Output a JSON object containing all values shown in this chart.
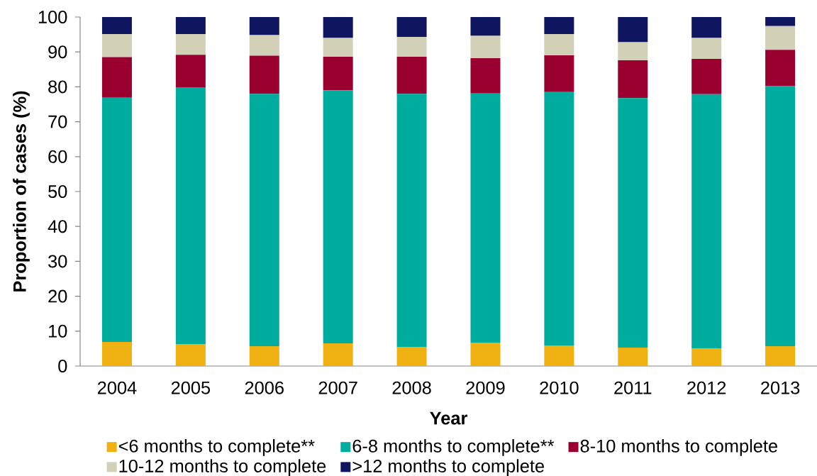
{
  "chart_data": {
    "type": "bar",
    "stacked": true,
    "xlabel": "Year",
    "ylabel": "Proportion of cases (%)",
    "categories": [
      "2004",
      "2005",
      "2006",
      "2007",
      "2008",
      "2009",
      "2010",
      "2011",
      "2012",
      "2013"
    ],
    "ylim": [
      0,
      100
    ],
    "yticks": [
      0,
      10,
      20,
      30,
      40,
      50,
      60,
      70,
      80,
      90,
      100
    ],
    "legend": "bottom",
    "series": [
      {
        "name": "<6 months to complete**",
        "color": "#eeb111",
        "values": [
          6.9,
          6.3,
          5.7,
          6.5,
          5.5,
          6.7,
          5.9,
          5.3,
          5.0,
          5.7
        ]
      },
      {
        "name": "6-8 months to complete**",
        "color": "#00ac9d",
        "values": [
          70.0,
          73.6,
          72.3,
          72.5,
          72.5,
          71.4,
          72.6,
          71.5,
          72.9,
          74.5
        ]
      },
      {
        "name": "8-10 months to complete",
        "color": "#990030",
        "values": [
          11.6,
          9.3,
          10.9,
          9.6,
          10.6,
          10.1,
          10.5,
          10.8,
          10.1,
          10.4
        ]
      },
      {
        "name": "10-12 months to complete",
        "color": "#d2d0b6",
        "values": [
          6.6,
          5.9,
          5.9,
          5.4,
          5.7,
          6.4,
          6.1,
          5.2,
          6.0,
          6.8
        ]
      },
      {
        "name": ">12 months to complete",
        "color": "#0f155e",
        "values": [
          4.9,
          4.9,
          5.2,
          6.0,
          5.7,
          5.4,
          4.9,
          7.2,
          6.0,
          2.6
        ]
      }
    ]
  }
}
